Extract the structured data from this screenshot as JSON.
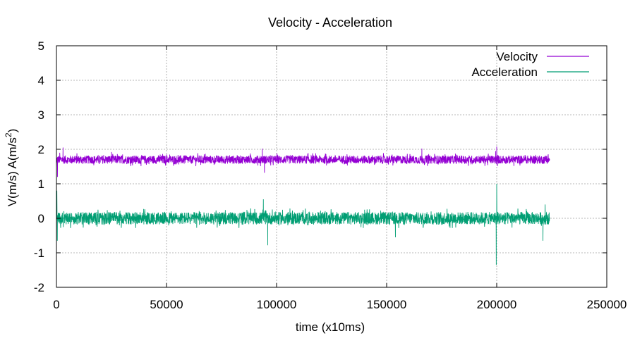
{
  "chart_data": {
    "type": "line",
    "title": "Velocity - Acceleration",
    "xlabel": "time (x10ms)",
    "ylabel_main": "V(m/s) A(m/s",
    "ylabel_sup": "2",
    "ylabel_close": ")",
    "xlim": [
      0,
      250000
    ],
    "ylim": [
      -2,
      5
    ],
    "x_ticks": [
      0,
      50000,
      100000,
      150000,
      200000,
      250000
    ],
    "y_ticks": [
      -2,
      -1,
      0,
      1,
      2,
      3,
      4,
      5
    ],
    "grid": true,
    "legend_position": "top-right",
    "x_end": 224000,
    "series": [
      {
        "name": "Velocity",
        "color": "#9400d3",
        "mean": 1.7,
        "noise_amplitude": 0.12,
        "points": [
          [
            0,
            1.4
          ],
          [
            500,
            1.2
          ],
          [
            1500,
            1.9
          ],
          [
            3000,
            2.05
          ],
          [
            25000,
            1.92
          ],
          [
            50000,
            1.85
          ],
          [
            93500,
            2.02
          ],
          [
            94500,
            1.32
          ],
          [
            100000,
            1.75
          ],
          [
            150000,
            1.78
          ],
          [
            166000,
            2.02
          ],
          [
            199500,
            1.95
          ],
          [
            200000,
            2.08
          ],
          [
            224000,
            1.7
          ]
        ]
      },
      {
        "name": "Acceleration",
        "color": "#009e73",
        "mean": 0.0,
        "noise_amplitude": 0.18,
        "points": [
          [
            200,
            0.8
          ],
          [
            400,
            -0.65
          ],
          [
            94000,
            0.55
          ],
          [
            96000,
            -0.78
          ],
          [
            120000,
            0.22
          ],
          [
            140000,
            0.25
          ],
          [
            154000,
            -0.55
          ],
          [
            199800,
            -1.35
          ],
          [
            200000,
            1.0
          ],
          [
            221000,
            -0.65
          ],
          [
            222000,
            0.4
          ],
          [
            224000,
            0.0
          ]
        ]
      }
    ]
  }
}
